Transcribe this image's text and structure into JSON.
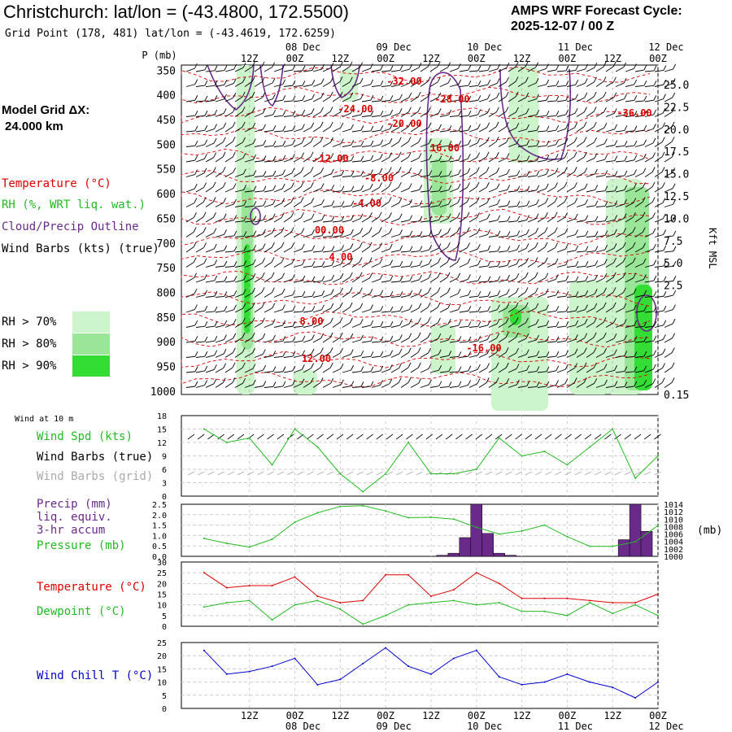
{
  "header": {
    "title": "Christchurch:  lat/lon = (-43.4800, 172.5500)",
    "grid_point": "Grid Point (178, 481) lat/lon = (-43.4619, 172.6259)",
    "forecast_label": "AMPS WRF Forecast Cycle:",
    "forecast_cycle": "2025-12-07 / 00  Z",
    "model_grid_label": "Model Grid ΔX:",
    "model_grid_value": "24.000 km"
  },
  "time_axis": {
    "hour_labels": [
      "12Z",
      "00Z",
      "12Z",
      "00Z",
      "12Z",
      "00Z",
      "12Z",
      "00Z",
      "12Z",
      "00Z"
    ],
    "day_labels": [
      "08 Dec",
      "09 Dec",
      "10 Dec",
      "11 Dec",
      "12 Dec"
    ],
    "day_index": [
      1,
      3,
      5,
      7,
      9
    ]
  },
  "legend": {
    "pressure_unit": "P (mb)",
    "temperature": "Temperature (°C)",
    "rh": "RH (%, WRT liq. wat.)",
    "cloud": "Cloud/Precip Outline",
    "wind_barbs": "Wind Barbs (kts) (true)",
    "rh_thresholds": [
      "RH > 70%",
      "RH > 80%",
      "RH > 90%"
    ],
    "rh_colors": [
      "#ccf5cc",
      "#99e699",
      "#33dd33"
    ],
    "kft_label": "Kft MSL",
    "wind10m": "Wind at 10 m",
    "wind_spd": "Wind Spd (kts)",
    "barbs_true": "Wind Barbs (true)",
    "barbs_grid": "Wind Barbs (grid)",
    "precip1": "Precip (mm)",
    "precip2": "liq. equiv.",
    "precip3": "3-hr accum",
    "pressure": "Pressure (mb)",
    "pressure_unit_right": "(mb)",
    "temp2": "Temperature (°C)",
    "dewpoint": "Dewpoint (°C)",
    "windchill": "Wind Chill T (°C)"
  },
  "colors": {
    "temp": "#dd0000",
    "green": "#22bb22",
    "purple": "#6a2a8a",
    "blue": "#0000cc",
    "grid": "#aaaaaa",
    "gridbarb": "#aaaaaa"
  },
  "chart_data": [
    {
      "type": "heatmap",
      "title": "Time-height cross section",
      "y_ticks_mb": [
        350,
        400,
        450,
        500,
        550,
        600,
        650,
        700,
        750,
        800,
        850,
        900,
        950,
        1000
      ],
      "y_ticks_kft": [
        "25.0",
        "22.5",
        "20.0",
        "17.5",
        "15.0",
        "12.5",
        "10.0",
        "7.5",
        "5.0",
        "2.5",
        "0.15"
      ],
      "temperature_contour_labels": [
        "-32.00",
        "-28.00",
        "-24.00",
        "-20.00",
        "-36.00",
        "-16.00",
        "-12.00",
        "-8.00",
        "-4.00",
        "00.00",
        "4.00",
        "8.00",
        "12.00",
        "16.00"
      ]
    },
    {
      "type": "line",
      "title": "Wind Spd (kts)",
      "ylim": [
        0,
        18
      ],
      "y_ticks": [
        0,
        3,
        6,
        9,
        12,
        15,
        18
      ],
      "x_hours": [
        0,
        6,
        12,
        18,
        24,
        30,
        36,
        42,
        48,
        54,
        60,
        66,
        72,
        78,
        84,
        90,
        96,
        102,
        108,
        114,
        120
      ],
      "values": [
        15,
        12,
        13,
        7,
        15,
        11,
        5,
        1,
        5,
        12,
        5,
        5,
        6,
        13,
        9,
        10,
        7,
        11,
        15,
        4,
        9
      ]
    },
    {
      "type": "bar",
      "title": "Precip (mm) / Pressure (mb)",
      "ylim_precip": [
        0,
        2.5
      ],
      "y_ticks_precip": [
        "0.0",
        "0.5",
        "1.0",
        "1.5",
        "2.0",
        "2.5"
      ],
      "y_ticks_pressure": [
        "1000",
        "1002",
        "1004",
        "1006",
        "1008",
        "1010",
        "1012",
        "1014"
      ],
      "precip_hours": [
        63,
        66,
        69,
        72,
        75,
        78,
        81,
        111,
        114,
        117
      ],
      "precip_values": [
        0.05,
        0.15,
        0.9,
        2.5,
        1.1,
        0.15,
        0.05,
        0.8,
        2.5,
        1.2
      ],
      "pressure_hours": [
        0,
        6,
        12,
        18,
        24,
        30,
        36,
        42,
        48,
        54,
        60,
        66,
        72,
        78,
        84,
        90,
        96,
        102,
        108,
        114,
        120
      ],
      "pressure_values": [
        1004.8,
        1003.5,
        1002.5,
        1004.6,
        1009.2,
        1011.7,
        1013.4,
        1013.6,
        1012.2,
        1010.4,
        1010.5,
        1010.0,
        1007.8,
        1006.0,
        1006.8,
        1008.4,
        1005.3,
        1002.7,
        1002.7,
        1003.9,
        1008.3
      ]
    },
    {
      "type": "line",
      "title": "Temperature / Dewpoint (°C)",
      "ylim": [
        0,
        30
      ],
      "y_ticks": [
        0,
        5,
        10,
        15,
        20,
        25,
        30
      ],
      "x_hours": [
        0,
        6,
        12,
        18,
        24,
        30,
        36,
        42,
        48,
        54,
        60,
        66,
        72,
        78,
        84,
        90,
        96,
        102,
        108,
        114,
        120
      ],
      "series": [
        {
          "name": "Temperature",
          "values": [
            25,
            18,
            19,
            19,
            23,
            14,
            11,
            12,
            24,
            24,
            14,
            17,
            25,
            20,
            13,
            13,
            13,
            12,
            11,
            11,
            15
          ]
        },
        {
          "name": "Dewpoint",
          "values": [
            9,
            11,
            12,
            3,
            10,
            12,
            8,
            1,
            5,
            10,
            11,
            12,
            10,
            11,
            7,
            7,
            5,
            11,
            6,
            10,
            5
          ]
        }
      ]
    },
    {
      "type": "line",
      "title": "Wind Chill T (°C)",
      "ylim": [
        0,
        25
      ],
      "y_ticks": [
        0,
        5,
        10,
        15,
        20,
        25
      ],
      "x_hours": [
        0,
        6,
        12,
        18,
        24,
        30,
        36,
        42,
        48,
        54,
        60,
        66,
        72,
        78,
        84,
        90,
        96,
        102,
        108,
        114,
        120
      ],
      "values": [
        22,
        13,
        14,
        16,
        19,
        9,
        11,
        17,
        23,
        16,
        13,
        19,
        22,
        12,
        9,
        10,
        13,
        10,
        8,
        4,
        10
      ]
    }
  ]
}
